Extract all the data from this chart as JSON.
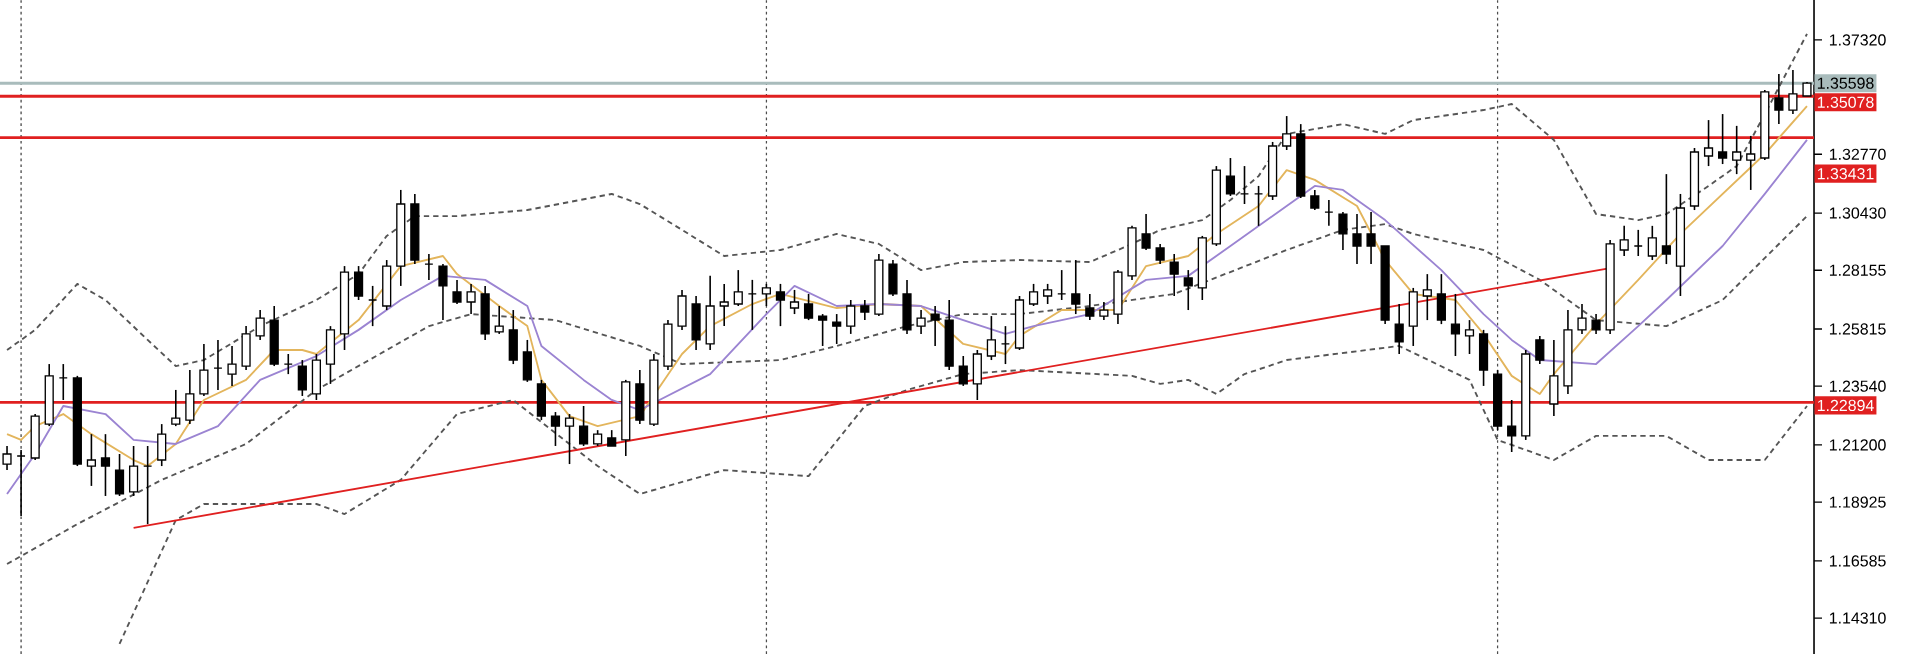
{
  "chart_data": {
    "type": "candlestick",
    "categories": [
      null,
      null,
      null,
      null,
      null,
      null,
      null,
      null,
      null,
      null,
      null,
      null,
      null,
      null,
      null,
      null,
      null,
      null,
      null,
      null,
      null,
      null,
      null,
      null,
      null,
      null,
      null,
      null,
      null,
      null,
      null,
      null,
      null,
      null,
      null,
      null,
      null,
      null,
      null,
      null,
      null,
      null,
      null,
      null,
      null,
      null,
      null,
      null,
      null,
      null,
      null,
      null,
      null,
      null,
      null,
      null,
      null,
      null,
      null,
      null,
      null,
      null,
      null,
      null,
      null,
      null,
      null,
      null,
      null,
      null,
      null,
      null,
      null,
      null,
      null,
      null,
      null,
      null,
      null,
      null,
      null,
      null,
      null,
      null,
      null,
      null,
      null,
      null,
      null,
      null,
      null,
      null,
      null,
      null,
      null,
      null,
      null,
      null,
      null,
      null,
      null,
      null,
      null,
      null,
      null,
      null,
      null,
      null,
      null,
      null,
      null,
      null,
      null,
      null,
      null,
      null,
      null,
      null,
      null,
      null,
      null,
      null,
      null,
      null,
      null,
      null,
      null,
      null,
      null
    ],
    "ohlc": [
      [
        1.2044,
        1.2116,
        1.202,
        1.2084
      ],
      [
        1.2076,
        1.21,
        1.1837,
        1.2076
      ],
      [
        1.2068,
        1.2243,
        1.206,
        1.2235
      ],
      [
        1.2203,
        1.2442,
        1.2195,
        1.2395
      ],
      [
        1.2387,
        1.2442,
        1.2299,
        1.2387
      ],
      [
        1.2387,
        1.2395,
        1.2036,
        1.2044
      ],
      [
        1.2036,
        1.2163,
        1.1957,
        1.206
      ],
      [
        1.2068,
        1.2163,
        1.1917,
        1.2036
      ],
      [
        1.202,
        1.2084,
        1.1917,
        1.1925
      ],
      [
        1.1933,
        1.2116,
        1.1917,
        1.2036
      ],
      [
        1.2036,
        1.2116,
        1.1805,
        1.2036
      ],
      [
        1.206,
        1.2203,
        1.2036,
        1.2163
      ],
      [
        1.2203,
        1.2339,
        1.2195,
        1.2227
      ],
      [
        1.2219,
        1.2418,
        1.2203,
        1.2323
      ],
      [
        1.2323,
        1.2522,
        1.2315,
        1.2418
      ],
      [
        1.2426,
        1.2538,
        1.2339,
        1.2426
      ],
      [
        1.2402,
        1.2514,
        1.2355,
        1.2442
      ],
      [
        1.2434,
        1.2593,
        1.2418,
        1.2562
      ],
      [
        1.2554,
        1.2657,
        1.2538,
        1.2625
      ],
      [
        1.2617,
        1.2673,
        1.2434,
        1.2442
      ],
      [
        1.2442,
        1.2482,
        1.2402,
        1.2442
      ],
      [
        1.2434,
        1.2458,
        1.2315,
        1.2339
      ],
      [
        1.2323,
        1.2482,
        1.2299,
        1.2458
      ],
      [
        1.2442,
        1.2593,
        1.2363,
        1.2578
      ],
      [
        1.2562,
        1.2832,
        1.2498,
        1.2808
      ],
      [
        1.2808,
        1.2832,
        1.2697,
        1.2713
      ],
      [
        1.2697,
        1.2753,
        1.2593,
        1.2697
      ],
      [
        1.2673,
        1.2856,
        1.2657,
        1.2832
      ],
      [
        1.2832,
        1.3135,
        1.2753,
        1.3079
      ],
      [
        1.3079,
        1.3119,
        1.284,
        1.2856
      ],
      [
        1.284,
        1.288,
        1.2777,
        1.284
      ],
      [
        1.2832,
        1.284,
        1.2617,
        1.2753
      ],
      [
        1.2729,
        1.2777,
        1.2681,
        1.2689
      ],
      [
        1.2689,
        1.2761,
        1.2641,
        1.2729
      ],
      [
        1.2721,
        1.2753,
        1.2538,
        1.2562
      ],
      [
        1.257,
        1.2673,
        1.2562,
        1.2593
      ],
      [
        1.2578,
        1.2657,
        1.2442,
        1.2458
      ],
      [
        1.249,
        1.2538,
        1.2371,
        1.2379
      ],
      [
        1.2363,
        1.2379,
        1.2219,
        1.2235
      ],
      [
        1.2235,
        1.2251,
        1.2116,
        1.2195
      ],
      [
        1.2195,
        1.2243,
        1.2044,
        1.2227
      ],
      [
        1.2195,
        1.2275,
        1.2116,
        1.2124
      ],
      [
        1.2124,
        1.2179,
        1.2116,
        1.2163
      ],
      [
        1.2148,
        1.2179,
        1.2116,
        1.2116
      ],
      [
        1.214,
        1.2379,
        1.2076,
        1.2371
      ],
      [
        1.2363,
        1.2418,
        1.2203,
        1.2219
      ],
      [
        1.2203,
        1.2482,
        1.2195,
        1.2458
      ],
      [
        1.2434,
        1.2617,
        1.2418,
        1.2601
      ],
      [
        1.2593,
        1.2737,
        1.2578,
        1.2713
      ],
      [
        1.2681,
        1.2713,
        1.2498,
        1.2538
      ],
      [
        1.2522,
        1.2793,
        1.2498,
        1.2673
      ],
      [
        1.2673,
        1.2761,
        1.2593,
        1.2689
      ],
      [
        1.2681,
        1.2816,
        1.2673,
        1.2729
      ],
      [
        1.2721,
        1.2777,
        1.2578,
        1.2721
      ],
      [
        1.2721,
        1.2761,
        1.2673,
        1.2745
      ],
      [
        1.2729,
        1.2761,
        1.2593,
        1.2697
      ],
      [
        1.2665,
        1.2737,
        1.2641,
        1.2689
      ],
      [
        1.2681,
        1.2721,
        1.2617,
        1.2625
      ],
      [
        1.2633,
        1.2641,
        1.2514,
        1.2617
      ],
      [
        1.2609,
        1.2641,
        1.2522,
        1.2593
      ],
      [
        1.2593,
        1.2697,
        1.2562,
        1.2673
      ],
      [
        1.2673,
        1.2697,
        1.2617,
        1.2649
      ],
      [
        1.2641,
        1.288,
        1.2633,
        1.2856
      ],
      [
        1.284,
        1.2856,
        1.2713,
        1.2721
      ],
      [
        1.2721,
        1.2777,
        1.2562,
        1.2578
      ],
      [
        1.2593,
        1.2657,
        1.2562,
        1.2625
      ],
      [
        1.2641,
        1.2673,
        1.2514,
        1.2617
      ],
      [
        1.2617,
        1.2697,
        1.2418,
        1.2434
      ],
      [
        1.2434,
        1.2474,
        1.2355,
        1.2363
      ],
      [
        1.2363,
        1.2498,
        1.2299,
        1.2482
      ],
      [
        1.2474,
        1.2633,
        1.2458,
        1.2538
      ],
      [
        1.2522,
        1.2593,
        1.2442,
        1.2522
      ],
      [
        1.2506,
        1.2713,
        1.2498,
        1.2697
      ],
      [
        1.2681,
        1.2761,
        1.2673,
        1.2729
      ],
      [
        1.2713,
        1.2761,
        1.2681,
        1.2737
      ],
      [
        1.2721,
        1.2816,
        1.2697,
        1.2721
      ],
      [
        1.2721,
        1.2856,
        1.2641,
        1.2681
      ],
      [
        1.2665,
        1.2721,
        1.2617,
        1.2633
      ],
      [
        1.2633,
        1.2689,
        1.2617,
        1.2657
      ],
      [
        1.2641,
        1.2816,
        1.2601,
        1.2808
      ],
      [
        1.2793,
        1.2992,
        1.2777,
        1.2984
      ],
      [
        1.296,
        1.3039,
        1.2896,
        1.2904
      ],
      [
        1.2904,
        1.292,
        1.284,
        1.2856
      ],
      [
        1.2848,
        1.288,
        1.2713,
        1.28
      ],
      [
        1.2785,
        1.2816,
        1.2657,
        1.2753
      ],
      [
        1.2745,
        1.2952,
        1.2697,
        1.2944
      ],
      [
        1.292,
        1.323,
        1.2912,
        1.3214
      ],
      [
        1.319,
        1.3262,
        1.3111,
        1.3119
      ],
      [
        1.3119,
        1.323,
        1.3079,
        1.3119
      ],
      [
        1.3119,
        1.3151,
        1.2992,
        1.3119
      ],
      [
        1.3111,
        1.3326,
        1.3095,
        1.331
      ],
      [
        1.331,
        1.3429,
        1.3294,
        1.3358
      ],
      [
        1.3358,
        1.3397,
        1.3103,
        1.3111
      ],
      [
        1.3111,
        1.3135,
        1.3055,
        1.3063
      ],
      [
        1.3047,
        1.3095,
        1.2992,
        1.3047
      ],
      [
        1.3039,
        1.3047,
        1.2896,
        1.296
      ],
      [
        1.296,
        1.3039,
        1.284,
        1.2912
      ],
      [
        1.296,
        1.3047,
        1.284,
        1.2912
      ],
      [
        1.2912,
        1.2912,
        1.2601,
        1.2617
      ],
      [
        1.2601,
        1.2681,
        1.2482,
        1.253
      ],
      [
        1.2593,
        1.2745,
        1.2514,
        1.2729
      ],
      [
        1.2713,
        1.28,
        1.2617,
        1.2737
      ],
      [
        1.2721,
        1.28,
        1.2601,
        1.2617
      ],
      [
        1.2601,
        1.2721,
        1.2474,
        1.2562
      ],
      [
        1.2554,
        1.2617,
        1.2482,
        1.2578
      ],
      [
        1.2562,
        1.2578,
        1.2355,
        1.2418
      ],
      [
        1.2402,
        1.2418,
        1.2179,
        1.2195
      ],
      [
        1.2195,
        1.2299,
        1.2092,
        1.2156
      ],
      [
        1.2156,
        1.2498,
        1.214,
        1.2482
      ],
      [
        1.2538,
        1.2554,
        1.2442,
        1.2458
      ],
      [
        1.2283,
        1.2538,
        1.2235,
        1.2395
      ],
      [
        1.2355,
        1.2657,
        1.2323,
        1.2578
      ],
      [
        1.2578,
        1.2681,
        1.2562,
        1.2625
      ],
      [
        1.2617,
        1.2641,
        1.2562,
        1.2578
      ],
      [
        1.2578,
        1.2936,
        1.2562,
        1.292
      ],
      [
        1.2896,
        1.2992,
        1.2872,
        1.2936
      ],
      [
        1.2912,
        1.2976,
        1.2872,
        1.2912
      ],
      [
        1.2872,
        1.2992,
        1.2856,
        1.2944
      ],
      [
        1.2912,
        1.3198,
        1.284,
        1.288
      ],
      [
        1.2832,
        1.3119,
        1.2713,
        1.3063
      ],
      [
        1.3071,
        1.3302,
        1.3055,
        1.3286
      ],
      [
        1.327,
        1.3413,
        1.323,
        1.3302
      ],
      [
        1.3286,
        1.3437,
        1.3238,
        1.3262
      ],
      [
        1.3254,
        1.339,
        1.3198,
        1.3286
      ],
      [
        1.3254,
        1.335,
        1.3135,
        1.3278
      ],
      [
        1.3262,
        1.3533,
        1.3254,
        1.3525
      ],
      [
        1.3501,
        1.3596,
        1.3397,
        1.3453
      ],
      [
        1.3453,
        1.3612,
        1.3437,
        1.3517
      ],
      [
        1.3509,
        1.3565,
        1.3509,
        1.356
      ]
    ],
    "ylim": [
      1.1288,
      1.3891
    ],
    "yticks": [
      {
        "value": 1.3732,
        "label": "1.37320"
      },
      {
        "value": 1.3277,
        "label": "1.32770"
      },
      {
        "value": 1.3043,
        "label": "1.30430"
      },
      {
        "value": 1.28155,
        "label": "1.28155"
      },
      {
        "value": 1.25815,
        "label": "1.25815"
      },
      {
        "value": 1.2354,
        "label": "1.23540"
      },
      {
        "value": 1.212,
        "label": "1.21200"
      },
      {
        "value": 1.18925,
        "label": "1.18925"
      },
      {
        "value": 1.16585,
        "label": "1.16585"
      },
      {
        "value": 1.1431,
        "label": "1.14310"
      }
    ],
    "tick_labels": "y",
    "marker": "none",
    "series": [
      {
        "type": "line",
        "color": "#555555",
        "line_style": "dashed",
        "values": [
          1.2498,
          null,
          1.2578,
          null,
          null,
          1.2761,
          null,
          1.2697,
          null,
          null,
          1.2538,
          null,
          1.2434,
          null,
          1.2458,
          null,
          null,
          null,
          1.2593,
          null,
          null,
          null,
          1.2697,
          null,
          null,
          1.28,
          null,
          1.2952,
          null,
          1.3031,
          null,
          null,
          1.3031,
          null,
          null,
          null,
          null,
          1.3055,
          null,
          null,
          null,
          null,
          null,
          1.3119,
          null,
          1.3079,
          null,
          null,
          1.2976,
          null,
          null,
          1.2872,
          null,
          null,
          null,
          1.2896,
          null,
          null,
          null,
          1.296,
          null,
          null,
          1.292,
          null,
          null,
          1.2816,
          null,
          null,
          1.2848,
          null,
          null,
          null,
          1.2856,
          null,
          null,
          null,
          null,
          1.2848,
          null,
          null,
          1.292,
          null,
          1.2976,
          null,
          null,
          1.3015,
          null,
          1.3095,
          null,
          1.319,
          null,
          1.3358,
          null,
          null,
          null,
          1.3397,
          null,
          null,
          1.3358,
          null,
          1.3413,
          null,
          null,
          null,
          null,
          1.3453,
          null,
          1.3477,
          null,
          null,
          1.3334,
          null,
          null,
          1.3039,
          null,
          null,
          1.3015,
          null,
          1.3039,
          null,
          null,
          1.3151,
          null,
          1.323,
          null,
          1.3437,
          null,
          null,
          1.3756
        ]
      },
      {
        "type": "line",
        "color": "#555555",
        "line_style": "dashed",
        "values": [
          1.1646,
          null,
          null,
          null,
          null,
          1.1805,
          null,
          null,
          null,
          null,
          null,
          1.1981,
          null,
          null,
          null,
          null,
          null,
          1.2124,
          null,
          null,
          null,
          null,
          1.2339,
          null,
          null,
          null,
          null,
          null,
          null,
          null,
          1.2593,
          null,
          null,
          1.2641,
          null,
          null,
          null,
          null,
          null,
          1.2617,
          null,
          null,
          null,
          null,
          null,
          1.2514,
          null,
          null,
          1.2442,
          null,
          null,
          null,
          null,
          null,
          null,
          1.2458,
          null,
          null,
          null,
          1.2514,
          null,
          null,
          null,
          null,
          1.2593,
          null,
          null,
          null,
          1.2641,
          null,
          null,
          null,
          1.2641,
          null,
          null,
          null,
          null,
          1.2673,
          null,
          null,
          null,
          null,
          null,
          1.2721,
          null,
          null,
          null,
          null,
          null,
          null,
          null,
          1.2896,
          null,
          null,
          null,
          1.2976,
          null,
          null,
          1.2999,
          null,
          1.296,
          null,
          null,
          null,
          null,
          1.2896,
          null,
          null,
          null,
          1.2777,
          null,
          null,
          null,
          1.2617,
          null,
          null,
          null,
          null,
          1.2593,
          null,
          null,
          null,
          1.2697,
          null,
          null,
          null,
          null,
          null,
          1.3031
        ]
      },
      {
        "type": "line",
        "color": "#555555",
        "line_style": "dashed",
        "values": [
          null,
          null,
          null,
          null,
          null,
          null,
          null,
          null,
          1.1328,
          null,
          null,
          null,
          1.1821,
          null,
          1.1885,
          null,
          null,
          null,
          null,
          null,
          null,
          null,
          1.1885,
          null,
          1.1845,
          null,
          null,
          null,
          1.1981,
          null,
          null,
          null,
          1.2243,
          null,
          null,
          null,
          1.2299,
          null,
          null,
          null,
          null,
          null,
          1.2036,
          null,
          null,
          1.1925,
          null,
          null,
          null,
          null,
          null,
          1.202,
          null,
          null,
          null,
          null,
          null,
          1.1996,
          null,
          null,
          null,
          1.2275,
          null,
          null,
          1.2339,
          null,
          null,
          null,
          1.2402,
          null,
          null,
          null,
          1.2418,
          null,
          null,
          null,
          null,
          null,
          null,
          null,
          1.2395,
          null,
          1.2363,
          null,
          1.2379,
          null,
          1.2323,
          null,
          1.2402,
          null,
          null,
          1.2458,
          null,
          null,
          null,
          null,
          null,
          null,
          null,
          1.2514,
          null,
          null,
          null,
          null,
          1.2379,
          null,
          1.214,
          null,
          null,
          null,
          1.206,
          null,
          null,
          1.2156,
          null,
          null,
          null,
          null,
          1.2156,
          null,
          null,
          1.206,
          null,
          null,
          null,
          1.206,
          null,
          null,
          1.2275
        ]
      },
      {
        "type": "line",
        "color": "#e3b55c",
        "values": [
          1.2163,
          1.214,
          1.2195,
          null,
          1.2243,
          null,
          1.2163,
          null,
          null,
          1.206,
          1.2036,
          null,
          1.2124,
          null,
          1.2299,
          null,
          null,
          1.2379,
          null,
          1.2498,
          null,
          1.2498,
          1.2482,
          null,
          null,
          1.2617,
          null,
          null,
          1.2832,
          null,
          null,
          1.2872,
          1.28,
          null,
          null,
          1.2673,
          null,
          1.2593,
          1.2379,
          null,
          1.2235,
          null,
          1.2195,
          null,
          null,
          1.2235,
          null,
          null,
          1.2482,
          null,
          1.2593,
          null,
          null,
          1.2681,
          null,
          1.2721,
          null,
          null,
          null,
          1.2665,
          null,
          null,
          1.2681,
          null,
          null,
          1.2673,
          null,
          null,
          1.2522,
          null,
          null,
          1.2482,
          1.2554,
          null,
          null,
          1.2657,
          null,
          null,
          null,
          1.2657,
          null,
          1.2832,
          null,
          null,
          1.2872,
          null,
          1.296,
          null,
          null,
          1.3071,
          null,
          1.3214,
          null,
          1.3175,
          null,
          null,
          1.3071,
          null,
          1.2856,
          null,
          1.2721,
          null,
          null,
          1.2697,
          null,
          1.2562,
          null,
          1.2395,
          null,
          1.2323,
          1.2402,
          null,
          null,
          1.2601,
          null,
          null,
          1.2777,
          null,
          null,
          1.296,
          null,
          null,
          1.3119,
          null,
          null,
          1.3278,
          null,
          null,
          1.3469
        ]
      },
      {
        "type": "line",
        "color": "#9b84d2",
        "values": [
          1.1925,
          null,
          1.2084,
          null,
          1.2275,
          null,
          null,
          1.2243,
          null,
          1.214,
          null,
          null,
          1.2124,
          null,
          null,
          1.2195,
          null,
          null,
          1.2379,
          null,
          null,
          null,
          1.2474,
          null,
          null,
          1.2578,
          null,
          null,
          1.2697,
          null,
          null,
          1.2793,
          null,
          null,
          1.2777,
          null,
          null,
          1.2673,
          1.2514,
          null,
          null,
          1.2379,
          null,
          1.2299,
          null,
          1.2259,
          null,
          null,
          null,
          null,
          1.2402,
          null,
          null,
          null,
          1.2641,
          null,
          1.2753,
          null,
          null,
          1.2673,
          null,
          null,
          1.2681,
          null,
          null,
          1.2673,
          null,
          null,
          1.2617,
          null,
          null,
          1.2562,
          null,
          1.2593,
          null,
          null,
          null,
          1.2641,
          null,
          null,
          null,
          1.2777,
          null,
          null,
          1.2793,
          null,
          null,
          1.2912,
          null,
          null,
          null,
          1.3071,
          null,
          1.3151,
          null,
          1.3135,
          null,
          null,
          1.3015,
          null,
          null,
          null,
          1.2816,
          null,
          null,
          1.2641,
          null,
          1.2538,
          null,
          1.2458,
          null,
          null,
          null,
          1.2442,
          null,
          null,
          1.2593,
          null,
          1.2697,
          null,
          null,
          null,
          1.2912,
          null,
          null,
          1.3119,
          null,
          null,
          1.3334
        ]
      },
      {
        "type": "line",
        "color": "#e02020",
        "values": [
          null,
          null,
          null,
          null,
          null,
          null,
          null,
          null,
          null,
          1.179,
          null,
          null,
          null,
          null,
          null,
          null,
          null,
          null,
          null,
          null,
          null,
          null,
          null,
          null,
          null,
          null,
          null,
          null,
          null,
          null,
          null,
          null,
          null,
          null,
          null,
          null,
          null,
          null,
          null,
          null,
          null,
          null,
          null,
          null,
          null,
          null,
          null,
          null,
          null,
          null,
          null,
          null,
          null,
          null,
          null,
          null,
          null,
          null,
          null,
          null,
          null,
          null,
          null,
          null,
          null,
          null,
          null,
          null,
          null,
          null,
          null,
          null,
          null,
          null,
          null,
          null,
          null,
          null,
          null,
          null,
          null,
          null,
          null,
          null,
          null,
          null,
          null,
          null,
          null,
          null,
          null,
          null,
          null,
          null,
          null,
          null,
          null,
          null,
          null,
          null,
          null,
          null,
          null,
          null,
          null,
          null,
          null,
          null,
          null,
          null,
          null,
          null,
          null,
          null,
          1.2824,
          null,
          null,
          null,
          null,
          null,
          null,
          null,
          null,
          null,
          null,
          null,
          null,
          null,
          null
        ]
      }
    ],
    "ref_lines": [
      {
        "axis": "y",
        "value": 1.35598,
        "label": "1.35598",
        "color": "#a9bcbc"
      },
      {
        "axis": "y",
        "value": 1.35078,
        "label": "1.35078",
        "color": "#e02020"
      },
      {
        "axis": "y",
        "value": 1.33431,
        "label": "1.33431",
        "color": "#e02020"
      },
      {
        "axis": "y",
        "value": 1.22894,
        "label": "1.22894",
        "color": "#e02020"
      }
    ]
  }
}
